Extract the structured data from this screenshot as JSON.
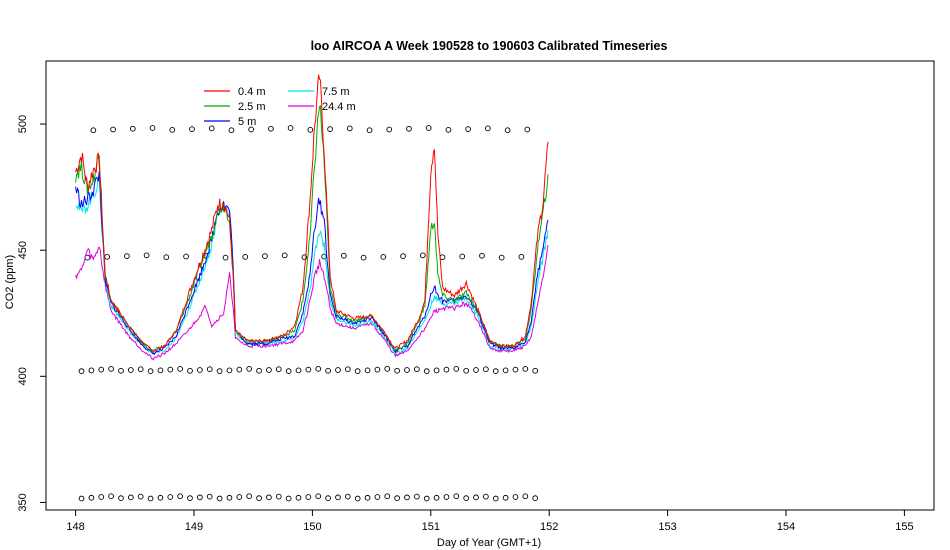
{
  "chart_data": {
    "type": "line",
    "title": "loo AIRCOA A  Week 190528 to 190603  Calibrated Timeseries",
    "xlabel": "Day of Year (GMT+1)",
    "ylabel": "CO2 (ppm)",
    "xlim": [
      147.75,
      155.25
    ],
    "ylim": [
      347,
      525
    ],
    "xticks": [
      "148",
      "149",
      "150",
      "151",
      "152",
      "153",
      "154",
      "155"
    ],
    "yticks": [
      "350",
      "400",
      "450",
      "500"
    ],
    "legend_position": "top-left",
    "series": [
      {
        "name": "0.4 m",
        "color": "#ff0000",
        "points": [
          [
            148.0,
            481
          ],
          [
            148.05,
            488
          ],
          [
            148.1,
            475
          ],
          [
            148.15,
            482
          ],
          [
            148.2,
            486
          ],
          [
            148.25,
            440
          ],
          [
            148.3,
            430
          ],
          [
            148.45,
            420
          ],
          [
            148.55,
            414
          ],
          [
            148.65,
            410
          ],
          [
            148.75,
            412
          ],
          [
            148.85,
            418
          ],
          [
            148.95,
            432
          ],
          [
            149.05,
            445
          ],
          [
            149.15,
            458
          ],
          [
            149.2,
            468
          ],
          [
            149.25,
            469
          ],
          [
            149.3,
            462
          ],
          [
            149.33,
            440
          ],
          [
            149.35,
            418
          ],
          [
            149.45,
            414
          ],
          [
            149.6,
            414
          ],
          [
            149.75,
            416
          ],
          [
            149.85,
            420
          ],
          [
            149.92,
            435
          ],
          [
            149.98,
            470
          ],
          [
            150.02,
            500
          ],
          [
            150.06,
            519
          ],
          [
            150.1,
            490
          ],
          [
            150.15,
            440
          ],
          [
            150.2,
            426
          ],
          [
            150.35,
            423
          ],
          [
            150.5,
            424
          ],
          [
            150.6,
            418
          ],
          [
            150.7,
            411
          ],
          [
            150.8,
            414
          ],
          [
            150.9,
            423
          ],
          [
            150.95,
            430
          ],
          [
            151.0,
            482
          ],
          [
            151.03,
            493
          ],
          [
            151.06,
            456
          ],
          [
            151.1,
            435
          ],
          [
            151.2,
            432
          ],
          [
            151.3,
            437
          ],
          [
            151.4,
            426
          ],
          [
            151.5,
            414
          ],
          [
            151.6,
            412
          ],
          [
            151.7,
            412
          ],
          [
            151.8,
            416
          ],
          [
            151.85,
            430
          ],
          [
            151.9,
            455
          ],
          [
            151.95,
            470
          ],
          [
            151.99,
            493
          ]
        ]
      },
      {
        "name": "2.5 m",
        "color": "#00aa00",
        "points": [
          [
            148.0,
            480
          ],
          [
            148.05,
            483
          ],
          [
            148.1,
            474
          ],
          [
            148.15,
            478
          ],
          [
            148.2,
            488
          ],
          [
            148.25,
            440
          ],
          [
            148.3,
            430
          ],
          [
            148.45,
            420
          ],
          [
            148.55,
            414
          ],
          [
            148.65,
            410
          ],
          [
            148.75,
            412
          ],
          [
            148.85,
            418
          ],
          [
            148.95,
            430
          ],
          [
            149.05,
            443
          ],
          [
            149.15,
            456
          ],
          [
            149.2,
            466
          ],
          [
            149.25,
            468
          ],
          [
            149.3,
            463
          ],
          [
            149.33,
            440
          ],
          [
            149.35,
            418
          ],
          [
            149.45,
            414
          ],
          [
            149.6,
            414
          ],
          [
            149.75,
            416
          ],
          [
            149.85,
            418
          ],
          [
            149.92,
            430
          ],
          [
            149.98,
            455
          ],
          [
            150.02,
            485
          ],
          [
            150.06,
            509
          ],
          [
            150.1,
            485
          ],
          [
            150.15,
            435
          ],
          [
            150.2,
            425
          ],
          [
            150.35,
            422
          ],
          [
            150.5,
            424
          ],
          [
            150.6,
            418
          ],
          [
            150.7,
            410
          ],
          [
            150.8,
            413
          ],
          [
            150.9,
            422
          ],
          [
            150.95,
            428
          ],
          [
            151.0,
            458
          ],
          [
            151.03,
            462
          ],
          [
            151.06,
            440
          ],
          [
            151.1,
            432
          ],
          [
            151.2,
            430
          ],
          [
            151.3,
            433
          ],
          [
            151.4,
            426
          ],
          [
            151.5,
            414
          ],
          [
            151.6,
            412
          ],
          [
            151.7,
            412
          ],
          [
            151.8,
            415
          ],
          [
            151.85,
            427
          ],
          [
            151.9,
            450
          ],
          [
            151.95,
            465
          ],
          [
            151.99,
            480
          ]
        ]
      },
      {
        "name": "5 m",
        "color": "#0000ff",
        "points": [
          [
            148.0,
            475
          ],
          [
            148.05,
            468
          ],
          [
            148.1,
            470
          ],
          [
            148.15,
            474
          ],
          [
            148.2,
            480
          ],
          [
            148.25,
            438
          ],
          [
            148.3,
            429
          ],
          [
            148.45,
            419
          ],
          [
            148.55,
            413
          ],
          [
            148.65,
            409
          ],
          [
            148.75,
            411
          ],
          [
            148.85,
            416
          ],
          [
            148.95,
            428
          ],
          [
            149.05,
            440
          ],
          [
            149.15,
            454
          ],
          [
            149.2,
            466
          ],
          [
            149.25,
            468
          ],
          [
            149.3,
            466
          ],
          [
            149.33,
            445
          ],
          [
            149.35,
            418
          ],
          [
            149.45,
            413
          ],
          [
            149.6,
            413
          ],
          [
            149.75,
            415
          ],
          [
            149.85,
            416
          ],
          [
            149.92,
            425
          ],
          [
            149.98,
            440
          ],
          [
            150.02,
            460
          ],
          [
            150.06,
            470
          ],
          [
            150.1,
            462
          ],
          [
            150.15,
            432
          ],
          [
            150.2,
            424
          ],
          [
            150.35,
            421
          ],
          [
            150.5,
            423
          ],
          [
            150.6,
            417
          ],
          [
            150.7,
            410
          ],
          [
            150.8,
            412
          ],
          [
            150.9,
            420
          ],
          [
            150.95,
            424
          ],
          [
            151.0,
            432
          ],
          [
            151.03,
            436
          ],
          [
            151.06,
            432
          ],
          [
            151.1,
            430
          ],
          [
            151.2,
            430
          ],
          [
            151.3,
            432
          ],
          [
            151.4,
            425
          ],
          [
            151.5,
            413
          ],
          [
            151.6,
            411
          ],
          [
            151.7,
            411
          ],
          [
            151.8,
            414
          ],
          [
            151.85,
            422
          ],
          [
            151.9,
            440
          ],
          [
            151.95,
            452
          ],
          [
            151.99,
            462
          ]
        ]
      },
      {
        "name": "7.5 m",
        "color": "#00e5e5",
        "points": [
          [
            148.0,
            470
          ],
          [
            148.05,
            465
          ],
          [
            148.1,
            468
          ],
          [
            148.15,
            472
          ],
          [
            148.2,
            478
          ],
          [
            148.25,
            437
          ],
          [
            148.3,
            428
          ],
          [
            148.45,
            418
          ],
          [
            148.55,
            413
          ],
          [
            148.65,
            409
          ],
          [
            148.75,
            410
          ],
          [
            148.85,
            415
          ],
          [
            148.95,
            426
          ],
          [
            149.05,
            438
          ],
          [
            149.15,
            452
          ],
          [
            149.2,
            465
          ],
          [
            149.25,
            467
          ],
          [
            149.3,
            465
          ],
          [
            149.33,
            445
          ],
          [
            149.35,
            417
          ],
          [
            149.45,
            413
          ],
          [
            149.6,
            413
          ],
          [
            149.75,
            414
          ],
          [
            149.85,
            415
          ],
          [
            149.92,
            422
          ],
          [
            149.98,
            434
          ],
          [
            150.02,
            448
          ],
          [
            150.06,
            458
          ],
          [
            150.1,
            452
          ],
          [
            150.15,
            430
          ],
          [
            150.2,
            423
          ],
          [
            150.35,
            420
          ],
          [
            150.5,
            422
          ],
          [
            150.6,
            416
          ],
          [
            150.7,
            409
          ],
          [
            150.8,
            411
          ],
          [
            150.9,
            419
          ],
          [
            150.95,
            422
          ],
          [
            151.0,
            428
          ],
          [
            151.03,
            432
          ],
          [
            151.06,
            430
          ],
          [
            151.1,
            429
          ],
          [
            151.2,
            429
          ],
          [
            151.3,
            431
          ],
          [
            151.4,
            424
          ],
          [
            151.5,
            412
          ],
          [
            151.6,
            411
          ],
          [
            151.7,
            411
          ],
          [
            151.8,
            413
          ],
          [
            151.85,
            420
          ],
          [
            151.9,
            436
          ],
          [
            151.95,
            448
          ],
          [
            151.99,
            458
          ]
        ]
      },
      {
        "name": "24.4 m",
        "color": "#dd00dd",
        "points": [
          [
            148.0,
            440
          ],
          [
            148.05,
            442
          ],
          [
            148.1,
            450
          ],
          [
            148.15,
            446
          ],
          [
            148.2,
            452
          ],
          [
            148.25,
            436
          ],
          [
            148.3,
            426
          ],
          [
            148.45,
            416
          ],
          [
            148.55,
            411
          ],
          [
            148.65,
            407
          ],
          [
            148.75,
            409
          ],
          [
            148.85,
            413
          ],
          [
            148.95,
            418
          ],
          [
            149.05,
            424
          ],
          [
            149.1,
            428
          ],
          [
            149.15,
            420
          ],
          [
            149.25,
            425
          ],
          [
            149.3,
            440
          ],
          [
            149.33,
            428
          ],
          [
            149.35,
            415
          ],
          [
            149.45,
            412
          ],
          [
            149.6,
            412
          ],
          [
            149.75,
            413
          ],
          [
            149.85,
            414
          ],
          [
            149.92,
            418
          ],
          [
            149.98,
            430
          ],
          [
            150.02,
            440
          ],
          [
            150.06,
            445
          ],
          [
            150.1,
            440
          ],
          [
            150.15,
            427
          ],
          [
            150.2,
            421
          ],
          [
            150.35,
            419
          ],
          [
            150.5,
            421
          ],
          [
            150.6,
            415
          ],
          [
            150.7,
            408
          ],
          [
            150.8,
            410
          ],
          [
            150.9,
            416
          ],
          [
            150.95,
            419
          ],
          [
            151.0,
            423
          ],
          [
            151.03,
            426
          ],
          [
            151.06,
            426
          ],
          [
            151.1,
            427
          ],
          [
            151.2,
            427
          ],
          [
            151.3,
            429
          ],
          [
            151.4,
            422
          ],
          [
            151.5,
            411
          ],
          [
            151.6,
            410
          ],
          [
            151.7,
            410
          ],
          [
            151.8,
            412
          ],
          [
            151.85,
            416
          ],
          [
            151.9,
            428
          ],
          [
            151.95,
            440
          ],
          [
            151.99,
            452
          ]
        ]
      }
    ],
    "calibration_points": {
      "marker": "open-circle",
      "levels": [
        {
          "y": 498,
          "x_start": 148.15,
          "spacing": 0.1666,
          "count": 23
        },
        {
          "y": 447.5,
          "x_start": 148.1,
          "spacing": 0.1666,
          "count": 23
        },
        {
          "y": 402.5,
          "x_start": 148.05,
          "spacing": 0.0833,
          "count": 47
        },
        {
          "y": 352,
          "x_start": 148.05,
          "spacing": 0.0833,
          "count": 47
        }
      ]
    }
  }
}
